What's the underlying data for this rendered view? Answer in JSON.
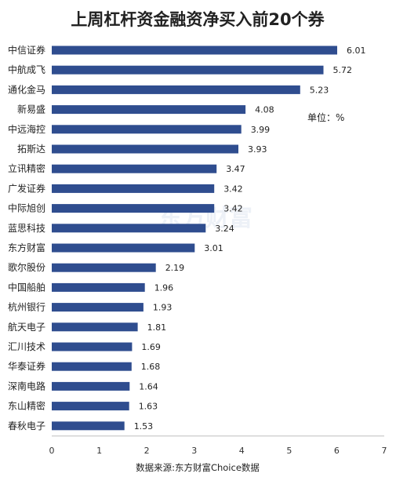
{
  "chart_data": {
    "type": "bar",
    "orientation": "horizontal",
    "title": "上周杠杆资金融资净买入前20个券",
    "unit_label": "单位：%",
    "source": "数据来源:东方财富Choice数据",
    "watermark": "东方财富",
    "xlim": [
      0,
      7
    ],
    "xticks": [
      "0",
      "1",
      "2",
      "3",
      "4",
      "5",
      "6",
      "7"
    ],
    "grid": false,
    "bar_color": "#2f4d8f",
    "categories": [
      "中信证券",
      "中航成飞",
      "通化金马",
      "新易盛",
      "中远海控",
      "拓斯达",
      "立讯精密",
      "广发证券",
      "中际旭创",
      "蓝思科技",
      "东方财富",
      "歌尔股份",
      "中国船舶",
      "杭州银行",
      "航天电子",
      "汇川技术",
      "华泰证券",
      "深南电路",
      "东山精密",
      "春秋电子"
    ],
    "values": [
      6.01,
      5.72,
      5.23,
      4.08,
      3.99,
      3.93,
      3.47,
      3.42,
      3.42,
      3.24,
      3.01,
      2.19,
      1.96,
      1.93,
      1.81,
      1.69,
      1.68,
      1.64,
      1.63,
      1.53
    ],
    "value_labels": [
      "6.01",
      "5.72",
      "5.23",
      "4.08",
      "3.99",
      "3.93",
      "3.47",
      "3.42",
      "3.42",
      "3.24",
      "3.01",
      "2.19",
      "1.96",
      "1.93",
      "1.81",
      "1.69",
      "1.68",
      "1.64",
      "1.63",
      "1.53"
    ]
  }
}
